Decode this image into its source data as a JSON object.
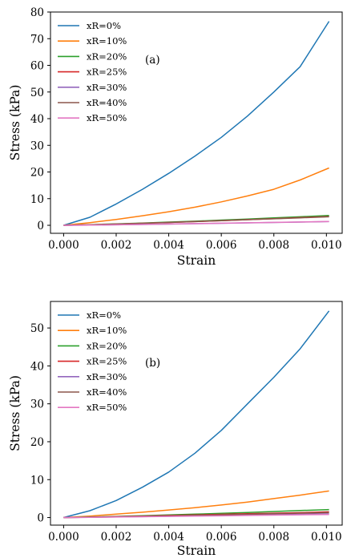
{
  "chart_data": [
    {
      "type": "line",
      "panel_label": "(a)",
      "xlabel": "Strain",
      "ylabel": "Stress (kPa)",
      "xlim": [
        -0.0005,
        0.0106
      ],
      "ylim": [
        -3,
        80
      ],
      "xticks": [
        0.0,
        0.002,
        0.004,
        0.006,
        0.008,
        0.01
      ],
      "xtick_labels": [
        "0.000",
        "0.002",
        "0.004",
        "0.006",
        "0.008",
        "0.010"
      ],
      "yticks": [
        0,
        10,
        20,
        30,
        40,
        50,
        60,
        70,
        80
      ],
      "ytick_labels": [
        "0",
        "10",
        "20",
        "30",
        "40",
        "50",
        "60",
        "70",
        "80"
      ],
      "grid": false,
      "legend_position": "top-left",
      "x": [
        0.0,
        0.001,
        0.002,
        0.003,
        0.004,
        0.005,
        0.006,
        0.007,
        0.008,
        0.009,
        0.0101
      ],
      "series": [
        {
          "name": "xR=0%",
          "color": "#1f77b4",
          "values": [
            0,
            3,
            8,
            13.5,
            19.5,
            26,
            33,
            41,
            50,
            59.5,
            76.5
          ]
        },
        {
          "name": "xR=10%",
          "color": "#ff7f0e",
          "values": [
            0,
            1.0,
            2.2,
            3.6,
            5.1,
            6.8,
            8.8,
            11.0,
            13.5,
            17,
            21.5
          ]
        },
        {
          "name": "xR=20%",
          "color": "#2ca02c",
          "values": [
            0,
            0.25,
            0.55,
            0.85,
            1.2,
            1.55,
            1.95,
            2.35,
            2.8,
            3.2,
            3.7
          ]
        },
        {
          "name": "xR=25%",
          "color": "#d62728",
          "values": [
            0,
            0.2,
            0.45,
            0.75,
            1.05,
            1.4,
            1.75,
            2.1,
            2.5,
            2.9,
            3.3
          ]
        },
        {
          "name": "xR=30%",
          "color": "#9467bd",
          "values": [
            0,
            0.1,
            0.2,
            0.3,
            0.45,
            0.6,
            0.75,
            0.9,
            1.05,
            1.2,
            1.4
          ]
        },
        {
          "name": "xR=40%",
          "color": "#8c564b",
          "values": [
            0,
            0.2,
            0.45,
            0.75,
            1.05,
            1.4,
            1.75,
            2.1,
            2.45,
            2.8,
            3.2
          ]
        },
        {
          "name": "xR=50%",
          "color": "#e377c2",
          "values": [
            0,
            0.1,
            0.2,
            0.35,
            0.5,
            0.65,
            0.8,
            0.95,
            1.1,
            1.25,
            1.45
          ]
        }
      ]
    },
    {
      "type": "line",
      "panel_label": "(b)",
      "xlabel": "Strain",
      "ylabel": "Stress (kPa)",
      "xlim": [
        -0.0005,
        0.0106
      ],
      "ylim": [
        -2,
        57
      ],
      "xticks": [
        0.0,
        0.002,
        0.004,
        0.006,
        0.008,
        0.01
      ],
      "xtick_labels": [
        "0.000",
        "0.002",
        "0.004",
        "0.006",
        "0.008",
        "0.010"
      ],
      "yticks": [
        0,
        10,
        20,
        30,
        40,
        50
      ],
      "ytick_labels": [
        "0",
        "10",
        "20",
        "30",
        "40",
        "50"
      ],
      "grid": false,
      "legend_position": "top-left",
      "x": [
        0.0,
        0.001,
        0.002,
        0.003,
        0.004,
        0.005,
        0.006,
        0.007,
        0.008,
        0.009,
        0.0101
      ],
      "series": [
        {
          "name": "xR=0%",
          "color": "#1f77b4",
          "values": [
            0,
            1.8,
            4.5,
            8,
            12,
            17,
            23,
            30,
            37,
            44.5,
            54.5
          ]
        },
        {
          "name": "xR=10%",
          "color": "#ff7f0e",
          "values": [
            0,
            0.4,
            0.9,
            1.4,
            2.0,
            2.6,
            3.3,
            4.1,
            5.0,
            5.9,
            7.0
          ]
        },
        {
          "name": "xR=20%",
          "color": "#2ca02c",
          "values": [
            0,
            0.15,
            0.3,
            0.5,
            0.7,
            0.9,
            1.1,
            1.35,
            1.6,
            1.85,
            2.1
          ]
        },
        {
          "name": "xR=25%",
          "color": "#d62728",
          "values": [
            0,
            0.1,
            0.25,
            0.4,
            0.55,
            0.7,
            0.85,
            1.0,
            1.15,
            1.3,
            1.5
          ]
        },
        {
          "name": "xR=30%",
          "color": "#9467bd",
          "values": [
            0,
            0.08,
            0.16,
            0.25,
            0.35,
            0.45,
            0.55,
            0.65,
            0.75,
            0.85,
            0.95
          ]
        },
        {
          "name": "xR=40%",
          "color": "#8c564b",
          "values": [
            0,
            0.1,
            0.2,
            0.32,
            0.45,
            0.58,
            0.72,
            0.86,
            1.0,
            1.15,
            1.3
          ]
        },
        {
          "name": "xR=50%",
          "color": "#e377c2",
          "values": [
            0,
            0.07,
            0.14,
            0.22,
            0.3,
            0.38,
            0.46,
            0.55,
            0.64,
            0.73,
            0.82
          ]
        }
      ]
    }
  ]
}
